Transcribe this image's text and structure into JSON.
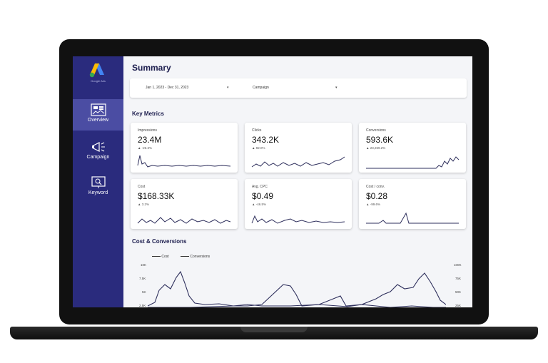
{
  "sidebar": {
    "logo_text": "Google Ads",
    "items": [
      {
        "label": "Overview",
        "icon": "dashboard-icon",
        "active": true
      },
      {
        "label": "Campaign",
        "icon": "megaphone-icon",
        "active": false
      },
      {
        "label": "Keyword",
        "icon": "keyword-icon",
        "active": false
      }
    ]
  },
  "header": {
    "title": "Summary"
  },
  "filters": {
    "date_range": "Jan 1, 2023 - Dec 31, 2023",
    "campaign": "Campaign"
  },
  "key_metrics": {
    "title": "Key Metrics",
    "cards": [
      {
        "label": "Impressions",
        "value": "23.4M",
        "delta": "▲ -26.3%"
      },
      {
        "label": "Clicks",
        "value": "343.2K",
        "delta": "▲ 92.0%"
      },
      {
        "label": "Conversions",
        "value": "593.6K",
        "delta": "▲ 23,269.2%"
      },
      {
        "label": "Cost",
        "value": "$168.33K",
        "delta": "▲ 3.2%"
      },
      {
        "label": "Avg. CPC",
        "value": "$0.49",
        "delta": "▲ -46.5%"
      },
      {
        "label": "Cost / conv.",
        "value": "$0.28",
        "delta": "▲ -99.6%"
      }
    ]
  },
  "cost_conversions": {
    "title": "Cost & Conversions",
    "legend": [
      "Cost",
      "Conversions"
    ],
    "left_ticks": [
      "10K",
      "7.5K",
      "5K",
      "2.5K"
    ],
    "right_ticks": [
      "100K",
      "75K",
      "50K",
      "25K"
    ]
  },
  "colors": {
    "sidebar": "#2a2b7d",
    "sidebar_active": "#4b4da3",
    "line": "#2e2f5c"
  }
}
